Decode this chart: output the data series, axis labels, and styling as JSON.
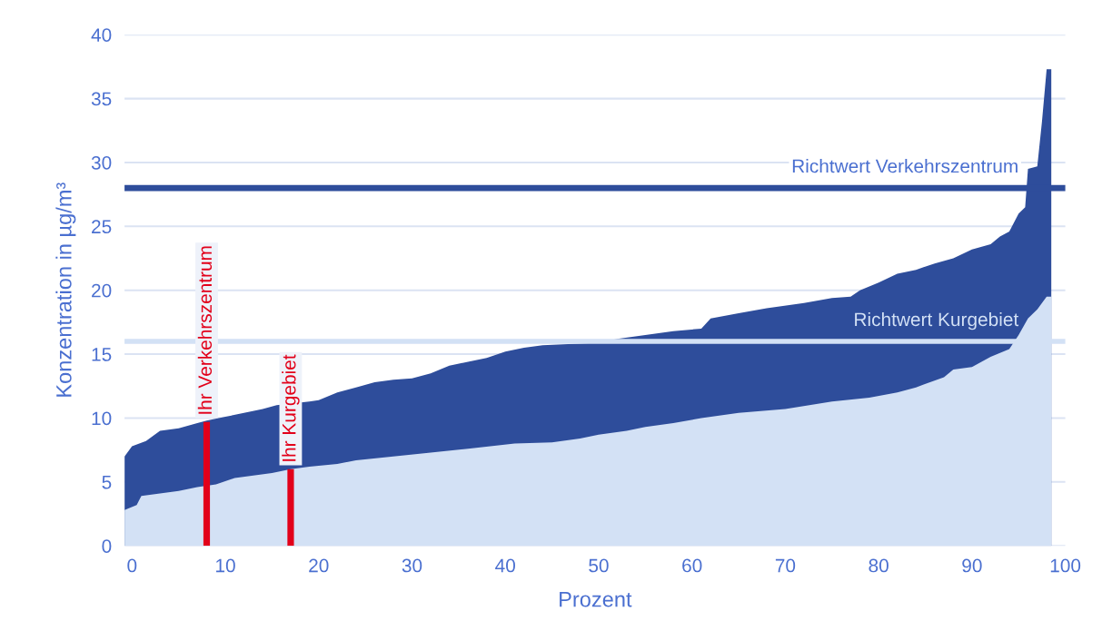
{
  "chart_data": {
    "type": "area",
    "xlabel": "Prozent",
    "ylabel": "Konzentration in µg/m³",
    "xlim": [
      -0.8,
      100
    ],
    "xticks": [
      0,
      10,
      20,
      30,
      40,
      50,
      60,
      70,
      80,
      90,
      100
    ],
    "ylim": [
      0,
      40
    ],
    "yticks": [
      0,
      5,
      10,
      15,
      20,
      25,
      30,
      35,
      40
    ],
    "grid": "y",
    "series": [
      {
        "color": "#2e4d9b",
        "x": [
          -0.8,
          0,
          1.5,
          3,
          5,
          7,
          8,
          10,
          12,
          14,
          15.5,
          19,
          20,
          22,
          24,
          26,
          28,
          30,
          32,
          34,
          36,
          38,
          40,
          42,
          44,
          50,
          52,
          55,
          58,
          61,
          62,
          65,
          68,
          72,
          75,
          77,
          78,
          80,
          82,
          84,
          86,
          88,
          90,
          92,
          93,
          94,
          95,
          95.7,
          96,
          97,
          97.5,
          98,
          98.5
        ],
        "values": [
          7.0,
          7.8,
          8.2,
          9.0,
          9.2,
          9.6,
          9.8,
          10.1,
          10.4,
          10.7,
          11.0,
          11.3,
          11.4,
          12.0,
          12.4,
          12.8,
          13.0,
          13.1,
          13.5,
          14.1,
          14.4,
          14.7,
          15.2,
          15.5,
          15.7,
          15.9,
          16.2,
          16.5,
          16.8,
          17.0,
          17.8,
          18.2,
          18.6,
          19.0,
          19.4,
          19.5,
          20.0,
          20.6,
          21.3,
          21.6,
          22.1,
          22.5,
          23.2,
          23.6,
          24.2,
          24.6,
          26.0,
          26.5,
          29.5,
          29.7,
          33.2,
          37.3,
          37.3
        ]
      },
      {
        "color": "#d3e1f5",
        "x": [
          -0.8,
          0.5,
          1.0,
          3,
          5,
          7,
          9,
          11,
          13,
          15,
          17,
          19,
          22,
          24,
          28,
          32,
          36,
          41,
          45,
          48,
          50,
          53,
          55,
          58,
          61,
          65,
          70,
          75,
          79,
          82,
          84,
          87,
          88,
          90,
          92,
          94,
          95,
          96,
          97,
          98,
          98.5
        ],
        "values": [
          2.8,
          3.2,
          3.9,
          4.1,
          4.3,
          4.6,
          4.8,
          5.3,
          5.5,
          5.7,
          6.0,
          6.2,
          6.4,
          6.7,
          7.0,
          7.3,
          7.6,
          8.0,
          8.1,
          8.4,
          8.7,
          9.0,
          9.3,
          9.6,
          10.0,
          10.4,
          10.7,
          11.3,
          11.6,
          12.0,
          12.4,
          13.2,
          13.8,
          14.0,
          14.8,
          15.4,
          16.5,
          17.8,
          18.5,
          19.5,
          19.5
        ]
      },
      {
        "type": "bar",
        "color": "#e2001a",
        "x": [
          8,
          17
        ],
        "values": [
          9.7,
          6.0
        ]
      }
    ],
    "ref_lines": [
      {
        "axis": "y",
        "value": 28,
        "label": "Richtwert Verkehrszentrum",
        "color": "#2e4d9b"
      },
      {
        "axis": "y",
        "value": 16,
        "label": "Richtwert Kurgebiet",
        "color": "#d3e1f5"
      }
    ],
    "annotations": [
      {
        "text": "Ihr Verkehrszentrum",
        "x": 8,
        "y": 9.7
      },
      {
        "text": "Ihr Kurgebiet",
        "x": 17,
        "y": 6.0
      }
    ]
  }
}
